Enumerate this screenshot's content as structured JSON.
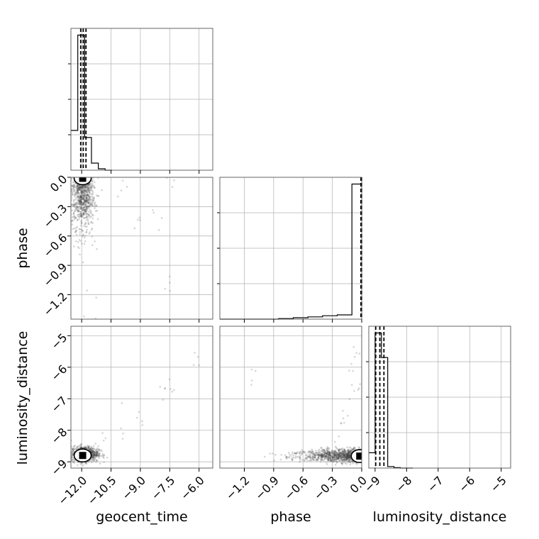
{
  "chart_data": {
    "type": "corner",
    "parameters": [
      "geocent_time",
      "phase",
      "luminosity_distance"
    ],
    "axis_labels": {
      "geocent_time": "geocent_time",
      "phase": "phase",
      "luminosity_distance": "luminosity_distance"
    },
    "ranges": {
      "geocent_time": [
        -12.55,
        -5.3
      ],
      "phase": [
        -1.45,
        0.0
      ],
      "luminosity_distance": [
        -9.2,
        -4.7
      ]
    },
    "ticks": {
      "geocent_time": [
        -12.0,
        -10.5,
        -9.0,
        -7.5,
        -6.0
      ],
      "phase": [
        -1.2,
        -0.9,
        -0.6,
        -0.3,
        0.0
      ],
      "luminosity_distance": [
        -9,
        -8,
        -7,
        -6,
        -5
      ]
    },
    "tick_labels": {
      "geocent_time": [
        "−12.0",
        "−10.5",
        "−9.0",
        "−7.5",
        "−6.0"
      ],
      "phase": [
        "−1.2",
        "−0.9",
        "−0.6",
        "−0.3",
        "0.0"
      ],
      "luminosity_distance": [
        "−9",
        "−8",
        "−7",
        "−6",
        "−5"
      ]
    },
    "histograms": {
      "geocent_time": {
        "edges": [
          -12.55,
          -12.2,
          -11.85,
          -11.5,
          -11.15,
          -10.8,
          -10.45
        ],
        "counts": [
          0.28,
          0.95,
          0.23,
          0.05,
          0.01,
          0.0
        ],
        "quantiles": [
          -12.05,
          -11.92,
          -11.78
        ]
      },
      "phase": {
        "edges": [
          -1.45,
          -1.3,
          -1.15,
          -1.0,
          -0.85,
          -0.7,
          -0.55,
          -0.4,
          -0.25,
          -0.1,
          0.0
        ],
        "counts": [
          0.0,
          0.0,
          0.0,
          0.0,
          0.004,
          0.01,
          0.016,
          0.024,
          0.03,
          0.95
        ],
        "quantiles": [
          -0.008,
          -0.003,
          -0.001
        ]
      },
      "luminosity_distance": {
        "edges": [
          -9.2,
          -9.0,
          -8.8,
          -8.6,
          -8.4,
          -8.2,
          -8.0,
          -7.8
        ],
        "counts": [
          0.1,
          0.88,
          0.72,
          0.01,
          0.003,
          0.0,
          0.0
        ],
        "quantiles": [
          -8.98,
          -8.85,
          -8.72
        ]
      }
    },
    "scatter_clusters": {
      "phase_vs_geocent_time": {
        "center": [
          -11.95,
          -0.15
        ],
        "spread": [
          0.3,
          0.25
        ],
        "n": 900,
        "outliers": [
          [
            -7.5,
            -1.07
          ],
          [
            -7.3,
            0.01
          ],
          [
            -9.1,
            -0.45
          ],
          [
            -10.0,
            -0.1
          ],
          [
            -8.2,
            -0.48
          ],
          [
            -11.5,
            -1.35
          ]
        ]
      },
      "luminosity_distance_vs_geocent_time": {
        "center": [
          -11.85,
          -8.75
        ],
        "spread": [
          0.35,
          0.12
        ],
        "n": 900,
        "trend": [
          [
            -11.0,
            -8.55
          ],
          [
            -10.0,
            -8.0
          ],
          [
            -9.0,
            -7.4
          ],
          [
            -8.0,
            -6.8
          ],
          [
            -7.5,
            -6.5
          ],
          [
            -6.2,
            -5.7
          ]
        ]
      },
      "luminosity_distance_vs_phase": {
        "center": [
          -0.3,
          -8.8
        ],
        "spread": [
          0.3,
          0.1
        ],
        "n": 1100,
        "outliers": [
          [
            -0.1,
            -6.2
          ],
          [
            -0.05,
            -6.5
          ],
          [
            -0.15,
            -7.2
          ],
          [
            -1.1,
            -6.4
          ],
          [
            -0.05,
            -5.6
          ],
          [
            -0.2,
            -7.8
          ]
        ]
      }
    },
    "contour_peak": {
      "phase_vs_geocent_time": [
        -11.95,
        -0.01
      ],
      "luminosity_distance_vs_geocent_time": [
        -11.95,
        -8.8
      ],
      "luminosity_distance_vs_phase": [
        -0.02,
        -8.82
      ]
    }
  }
}
